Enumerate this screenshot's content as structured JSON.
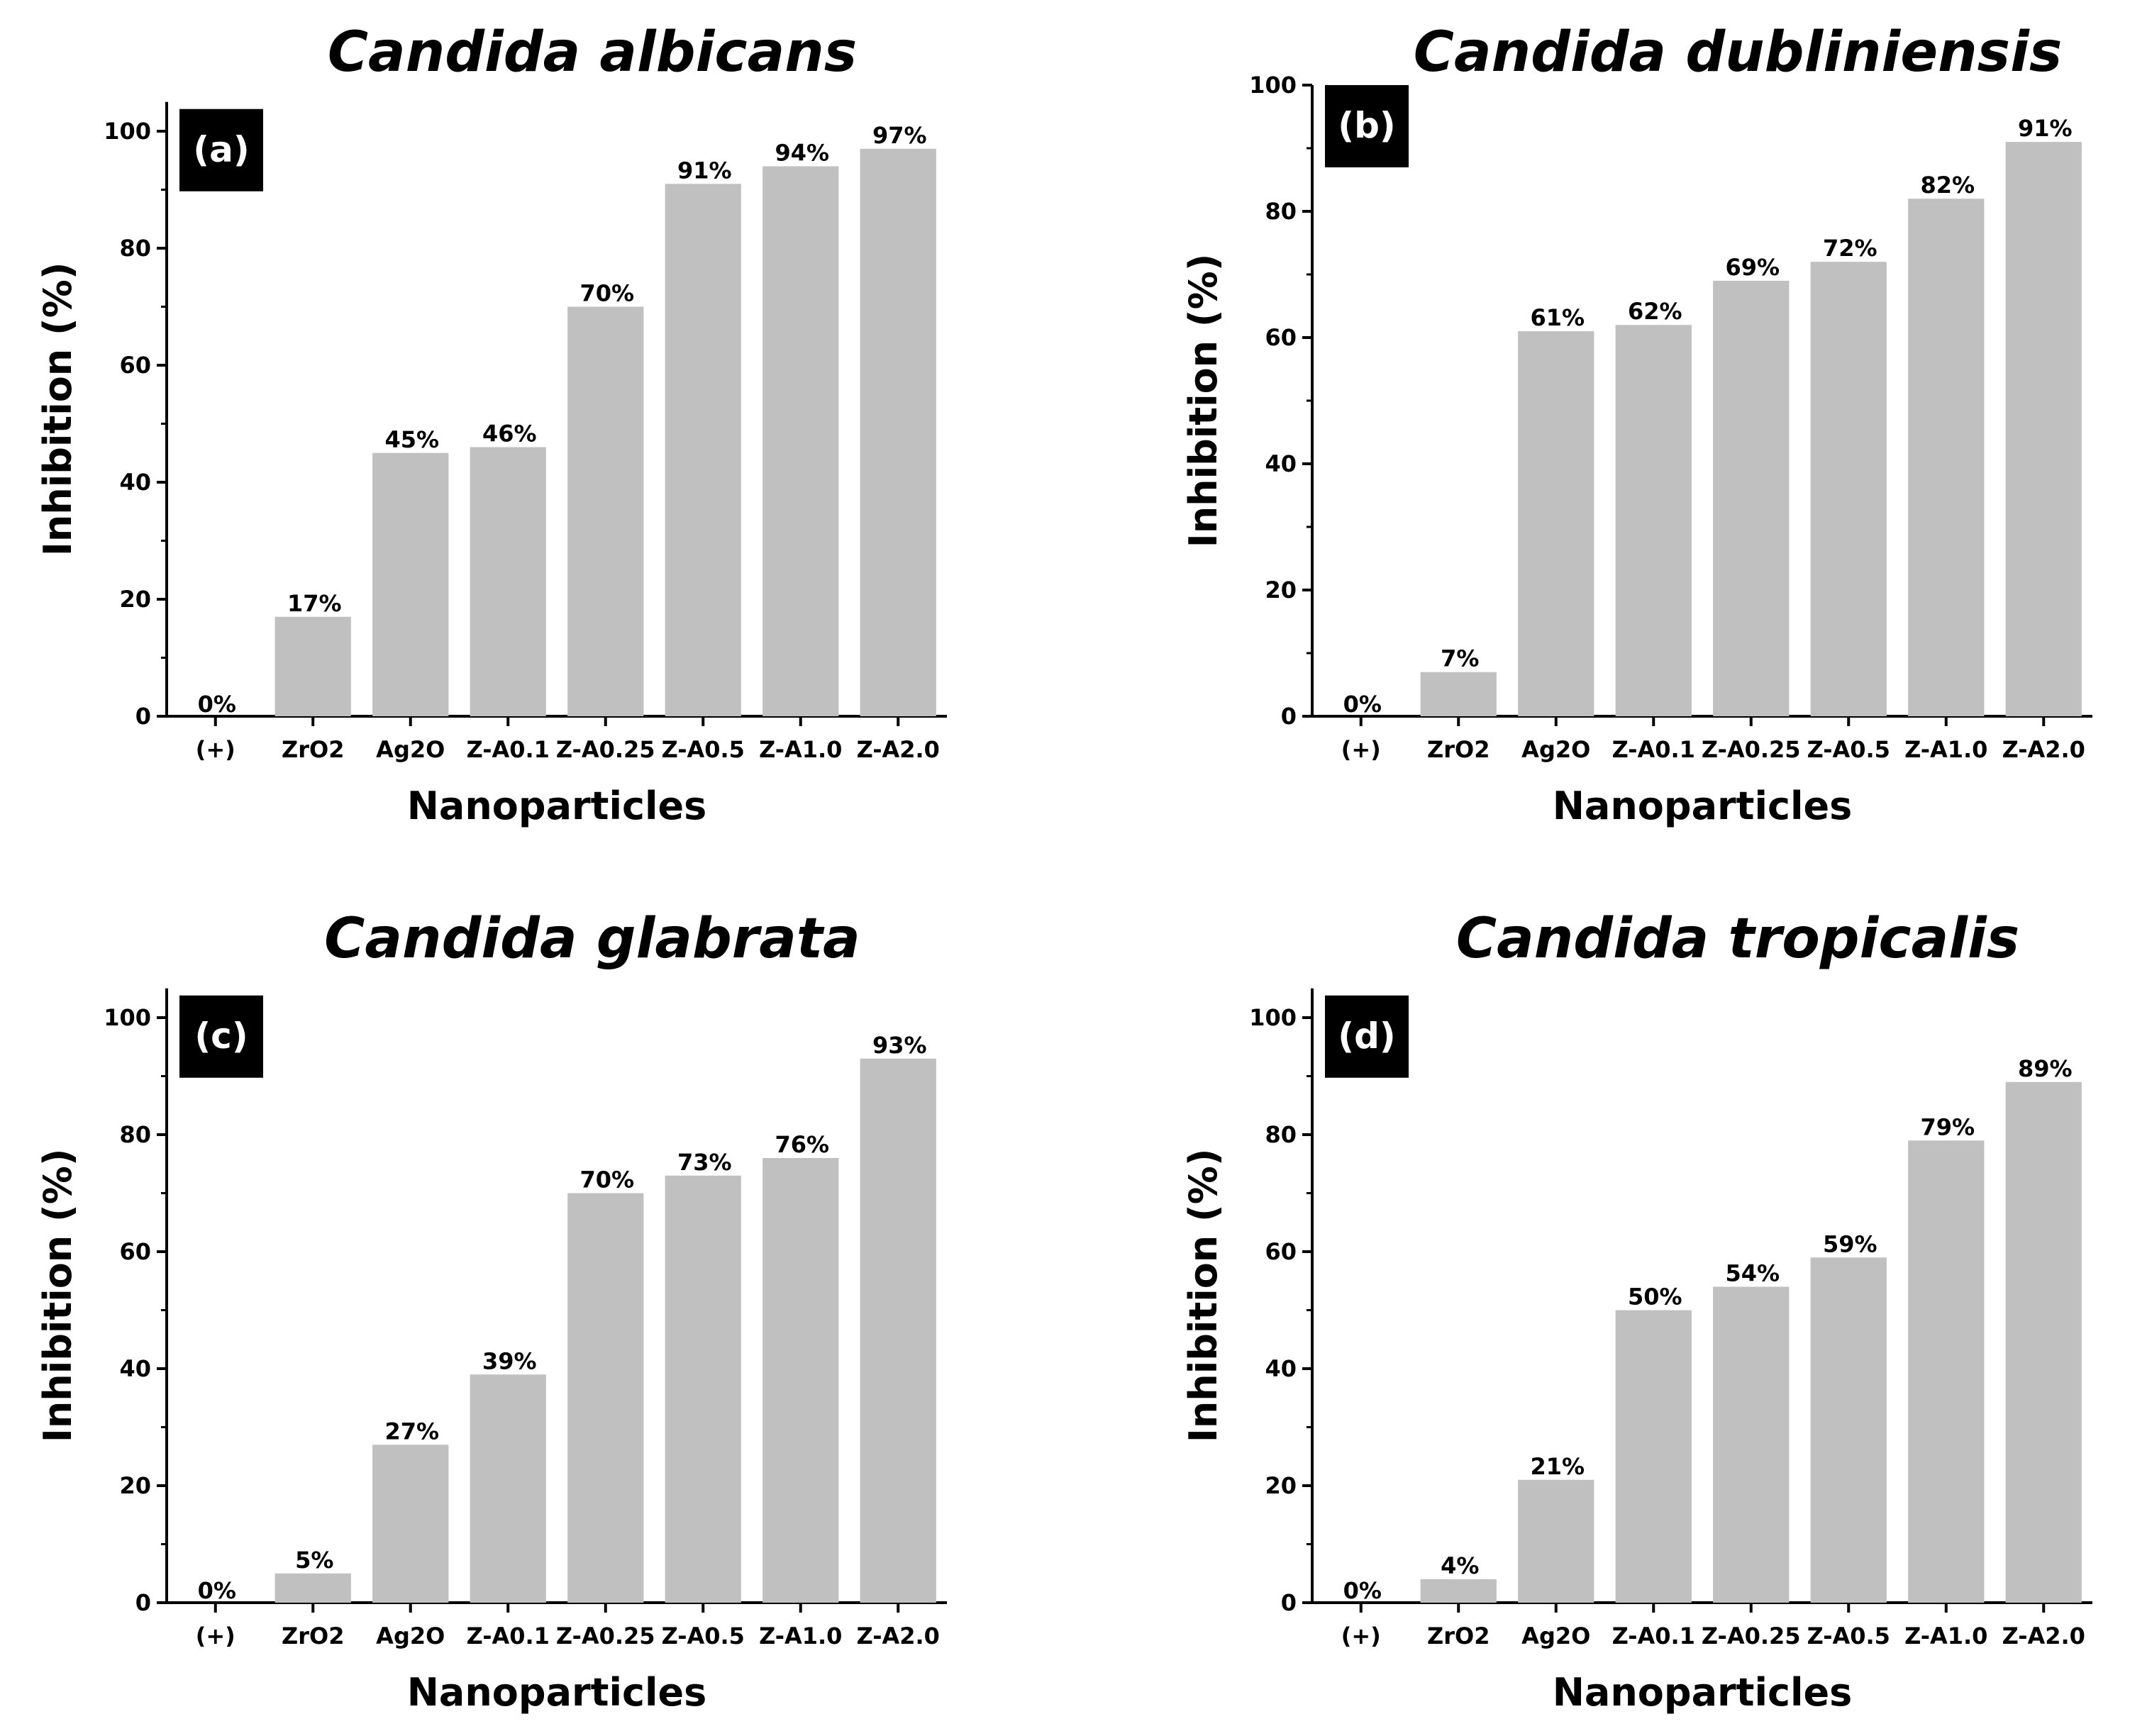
{
  "colors": {
    "bar": "#c0c0c0",
    "axis": "#000000",
    "badge": "#000000",
    "badge_text": "#ffffff"
  },
  "chart_data": [
    {
      "type": "bar",
      "panel": "(a)",
      "title": "Candida albicans",
      "xlabel": "Nanoparticles",
      "ylabel": "Inhibition (%)",
      "ylim": [
        0,
        105
      ],
      "yticks": [
        0,
        20,
        40,
        60,
        80,
        100
      ],
      "grid": false,
      "categories": [
        "(+)",
        "ZrO2",
        "Ag2O",
        "Z-A0.1",
        "Z-A0.25",
        "Z-A0.5",
        "Z-A1.0",
        "Z-A2.0"
      ],
      "values": [
        0,
        17,
        45,
        46,
        70,
        91,
        94,
        97
      ],
      "labels": [
        "0%",
        "17%",
        "45%",
        "46%",
        "70%",
        "91%",
        "94%",
        "97%"
      ]
    },
    {
      "type": "bar",
      "panel": "(b)",
      "title": "Candida dubliniensis",
      "xlabel": "Nanoparticles",
      "ylabel": "Inhibition (%)",
      "ylim": [
        0,
        100
      ],
      "yticks": [
        0,
        20,
        40,
        60,
        80,
        100
      ],
      "grid": false,
      "categories": [
        "(+)",
        "ZrO2",
        "Ag2O",
        "Z-A0.1",
        "Z-A0.25",
        "Z-A0.5",
        "Z-A1.0",
        "Z-A2.0"
      ],
      "values": [
        0,
        7,
        61,
        62,
        69,
        72,
        82,
        91
      ],
      "labels": [
        "0%",
        "7%",
        "61%",
        "62%",
        "69%",
        "72%",
        "82%",
        "91%"
      ]
    },
    {
      "type": "bar",
      "panel": "(c)",
      "title": "Candida glabrata",
      "xlabel": "Nanoparticles",
      "ylabel": "Inhibition (%)",
      "ylim": [
        0,
        105
      ],
      "yticks": [
        0,
        20,
        40,
        60,
        80,
        100
      ],
      "grid": false,
      "categories": [
        "(+)",
        "ZrO2",
        "Ag2O",
        "Z-A0.1",
        "Z-A0.25",
        "Z-A0.5",
        "Z-A1.0",
        "Z-A2.0"
      ],
      "values": [
        0,
        5,
        27,
        39,
        70,
        73,
        76,
        93
      ],
      "labels": [
        "0%",
        "5%",
        "27%",
        "39%",
        "70%",
        "73%",
        "76%",
        "93%"
      ]
    },
    {
      "type": "bar",
      "panel": "(d)",
      "title": "Candida tropicalis",
      "xlabel": "Nanoparticles",
      "ylabel": "Inhibition (%)",
      "ylim": [
        0,
        105
      ],
      "yticks": [
        0,
        20,
        40,
        60,
        80,
        100
      ],
      "grid": false,
      "categories": [
        "(+)",
        "ZrO2",
        "Ag2O",
        "Z-A0.1",
        "Z-A0.25",
        "Z-A0.5",
        "Z-A1.0",
        "Z-A2.0"
      ],
      "values": [
        0,
        4,
        21,
        50,
        54,
        59,
        79,
        89
      ],
      "labels": [
        "0%",
        "4%",
        "21%",
        "50%",
        "54%",
        "59%",
        "79%",
        "89%"
      ]
    }
  ]
}
